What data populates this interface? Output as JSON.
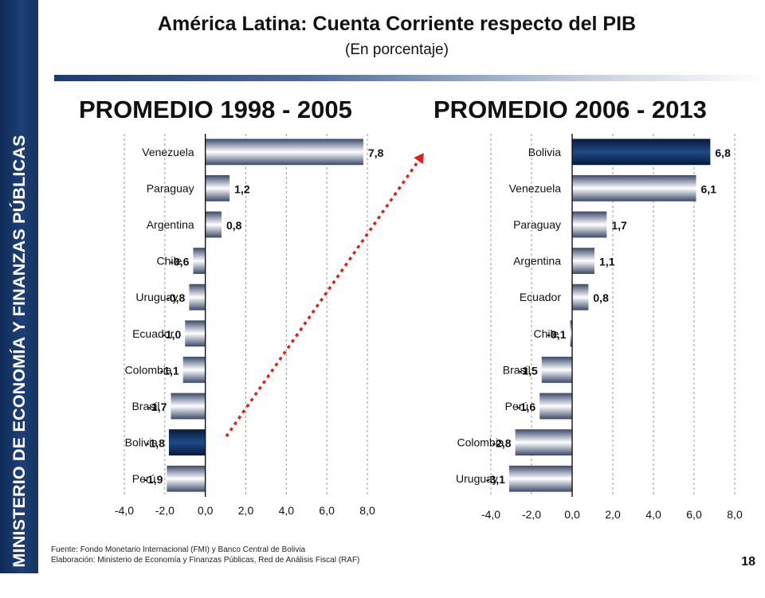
{
  "sidebar": {
    "text": "MINISTERIO DE ECONOMÍA Y FINANZAS PÚBLICAS"
  },
  "header": {
    "title": "América Latina: Cuenta Corriente respecto del PIB",
    "subtitle": "(En porcentaje)"
  },
  "colors": {
    "sidebar": "#1d3f78",
    "highlight_bar": "#0b2a5a",
    "bar_light": "#ffffff",
    "bar_dark": "#3b4a6b",
    "arrow": "#e0201a"
  },
  "chart_data": [
    {
      "type": "bar",
      "orientation": "horizontal",
      "title": "PROMEDIO 1998 - 2005",
      "categories": [
        "Venezuela",
        "Paraguay",
        "Argentina",
        "Chile",
        "Uruguay",
        "Ecuador",
        "Colombia",
        "Brasil",
        "Bolivia",
        "Perú"
      ],
      "values": [
        7.8,
        1.2,
        0.8,
        -0.6,
        -0.8,
        -1.0,
        -1.1,
        -1.7,
        -1.8,
        -1.9
      ],
      "value_labels": [
        "7,8",
        "1,2",
        "0,8",
        "-0,6",
        "-0,8",
        "-1,0",
        "-1,1",
        "-1,7",
        "-1,8",
        "-1,9"
      ],
      "highlight": "Bolivia",
      "xlim": [
        -4.0,
        8.0
      ],
      "xticks": [
        "-4,0",
        "-2,0",
        "0,0",
        "2,0",
        "4,0",
        "6,0",
        "8,0"
      ],
      "grid": "vertical dashed",
      "xlabel": "",
      "ylabel": ""
    },
    {
      "type": "bar",
      "orientation": "horizontal",
      "title": "PROMEDIO 2006 - 2013",
      "categories": [
        "Bolivia",
        "Venezuela",
        "Paraguay",
        "Argentina",
        "Ecuador",
        "Chile",
        "Brasil",
        "Perú",
        "Colombia",
        "Uruguay"
      ],
      "values": [
        6.8,
        6.1,
        1.7,
        1.1,
        0.8,
        -0.1,
        -1.5,
        -1.6,
        -2.8,
        -3.1
      ],
      "value_labels": [
        "6,8",
        "6,1",
        "1,7",
        "1,1",
        "0,8",
        "-0,1",
        "-1,5",
        "-1,6",
        "-2,8",
        "-3,1"
      ],
      "highlight": "Bolivia",
      "xlim": [
        -4.0,
        8.0
      ],
      "xticks": [
        "-4,0",
        "-2,0",
        "0,0",
        "2,0",
        "4,0",
        "6,0",
        "8,0"
      ],
      "grid": "vertical dashed",
      "xlabel": "",
      "ylabel": ""
    }
  ],
  "annotation": {
    "type": "dotted arrow",
    "from": "Bolivia bar (1998-2005)",
    "to": "Bolivia bar (2006-2013)"
  },
  "footer": {
    "source": "Fuente: Fondo Monetario Internacional (FMI) y Banco Central de Bolivia",
    "elaboration": "Elaboración: Ministerio de Economía y Finanzas Públicas, Red de Análisis Fiscal (RAF)"
  },
  "page_number": "18"
}
